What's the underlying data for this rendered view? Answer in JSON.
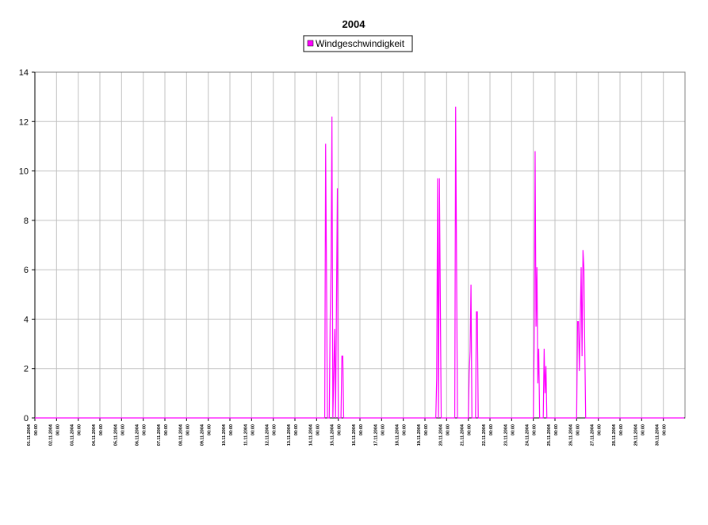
{
  "chart_data": {
    "type": "line",
    "title": "2004",
    "legend": "top",
    "grid": true,
    "x": [
      0,
      321,
      322,
      323,
      324,
      326,
      327,
      328,
      329,
      330,
      332,
      333,
      334,
      335,
      336,
      339,
      340,
      341,
      342,
      444,
      445,
      446,
      447,
      448,
      449,
      450,
      465,
      466,
      467,
      468,
      480,
      481,
      482,
      483,
      484,
      488,
      489,
      490,
      491,
      552,
      553,
      554,
      555,
      556,
      557,
      558,
      559,
      563,
      564,
      565,
      566,
      567,
      600,
      601,
      602,
      603,
      604,
      605,
      606,
      607,
      608,
      609,
      610,
      719
    ],
    "series": [
      {
        "name": "Windgeschwindigkeit",
        "color": "#ff00ff",
        "values": [
          0,
          0,
          11.1,
          5.5,
          0,
          0,
          3.9,
          6.1,
          12.2,
          0,
          3.6,
          0,
          4.6,
          9.3,
          0,
          0,
          2.5,
          2.5,
          0,
          0,
          1.6,
          9.7,
          0,
          9.7,
          4.8,
          0,
          0,
          12.6,
          6.1,
          0,
          0,
          1.8,
          2.7,
          5.4,
          0,
          0,
          4.3,
          4.3,
          0,
          0,
          3.2,
          10.8,
          3.7,
          6.1,
          1.4,
          2.8,
          0,
          0,
          2.8,
          1.0,
          2.1,
          0,
          0,
          3.9,
          3.9,
          1.9,
          3.9,
          6.1,
          2.5,
          6.8,
          6.1,
          2.8,
          0,
          0
        ]
      }
    ],
    "xlim": [
      0,
      720
    ],
    "xticks": [
      {
        "value": 0,
        "label": "01.11.2004 00:00"
      },
      {
        "value": 24,
        "label": "02.11.2004 00:00"
      },
      {
        "value": 48,
        "label": "03.11.2004 00:00"
      },
      {
        "value": 72,
        "label": "04.11.2004 00:00"
      },
      {
        "value": 96,
        "label": "05.11.2004 00:00"
      },
      {
        "value": 120,
        "label": "06.11.2004 00:00"
      },
      {
        "value": 144,
        "label": "07.11.2004 00:00"
      },
      {
        "value": 168,
        "label": "08.11.2004 00:00"
      },
      {
        "value": 192,
        "label": "09.11.2004 00:00"
      },
      {
        "value": 216,
        "label": "10.11.2004 00:00"
      },
      {
        "value": 240,
        "label": "11.11.2004 00:00"
      },
      {
        "value": 264,
        "label": "12.11.2004 00:00"
      },
      {
        "value": 288,
        "label": "13.11.2004 00:00"
      },
      {
        "value": 312,
        "label": "14.11.2004 00:00"
      },
      {
        "value": 336,
        "label": "15.11.2004 00:00"
      },
      {
        "value": 360,
        "label": "16.11.2004 00:00"
      },
      {
        "value": 384,
        "label": "17.11.2004 00:00"
      },
      {
        "value": 408,
        "label": "18.11.2004 00:00"
      },
      {
        "value": 432,
        "label": "19.11.2004 00:00"
      },
      {
        "value": 456,
        "label": "20.11.2004 00:00"
      },
      {
        "value": 480,
        "label": "21.11.2004 00:00"
      },
      {
        "value": 504,
        "label": "22.11.2004 00:00"
      },
      {
        "value": 528,
        "label": "23.11.2004 00:00"
      },
      {
        "value": 552,
        "label": "24.11.2004 00:00"
      },
      {
        "value": 576,
        "label": "25.11.2004 00:00"
      },
      {
        "value": 600,
        "label": "26.11.2004 00:00"
      },
      {
        "value": 624,
        "label": "27.11.2004 00:00"
      },
      {
        "value": 648,
        "label": "28.11.2004 00:00"
      },
      {
        "value": 672,
        "label": "29.11.2004 00:00"
      },
      {
        "value": 696,
        "label": "30.11.2004 00:00"
      }
    ],
    "ylim": [
      0,
      14
    ],
    "yticks": [
      0,
      2,
      4,
      6,
      8,
      10,
      12,
      14
    ]
  }
}
